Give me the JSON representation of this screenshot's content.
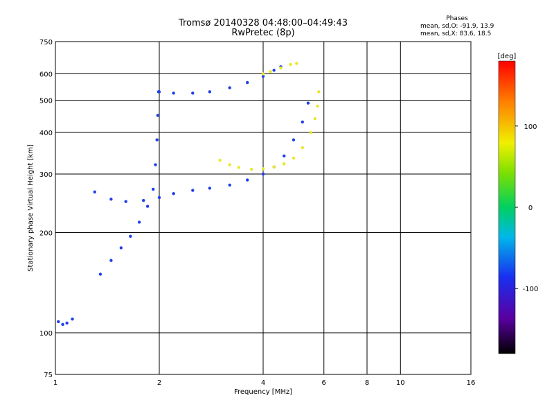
{
  "header": {
    "title_line1": "Tromsø 20140328 04:48:00–04:49:43",
    "title_line2": "RwPretec (8p)",
    "phases_label": "Phases",
    "phases_o": "mean, sd,O: -91.9, 13.9",
    "phases_x": "mean, sd,X:  83.6, 18.5"
  },
  "colorbar": {
    "label": "[deg]",
    "ticks": [
      "100",
      "0",
      "-100"
    ],
    "range": [
      -180,
      180
    ]
  },
  "colors": {
    "o_mode": "#1f3fe8",
    "x_mode": "#e8e82a",
    "grid": "#000000"
  },
  "chart_data": {
    "type": "scatter",
    "title": "Tromsø 20140328 04:48:00–04:49:43",
    "subtitle": "RwPretec (8p)",
    "xlabel": "Frequency [MHz]",
    "ylabel": "Stationary phase Virtual Height [km]",
    "xscale": "log",
    "yscale": "log",
    "xlim": [
      1,
      16
    ],
    "ylim": [
      75,
      750
    ],
    "xticks": [
      "1",
      "2",
      "4",
      "6",
      "8",
      "10",
      "16"
    ],
    "yticks": [
      "75",
      "100",
      "200",
      "300",
      "400",
      "500",
      "600",
      "750"
    ],
    "grid": true,
    "series": [
      {
        "name": "O",
        "color": "#1f3fe8",
        "points": [
          [
            1.02,
            108
          ],
          [
            1.05,
            106
          ],
          [
            1.08,
            107
          ],
          [
            1.12,
            110
          ],
          [
            1.35,
            150
          ],
          [
            1.45,
            165
          ],
          [
            1.55,
            180
          ],
          [
            1.65,
            195
          ],
          [
            1.75,
            215
          ],
          [
            1.85,
            240
          ],
          [
            1.92,
            270
          ],
          [
            1.95,
            320
          ],
          [
            1.97,
            380
          ],
          [
            1.98,
            450
          ],
          [
            1.99,
            530
          ],
          [
            1.3,
            265
          ],
          [
            1.45,
            252
          ],
          [
            1.6,
            248
          ],
          [
            1.8,
            250
          ],
          [
            2.0,
            255
          ],
          [
            2.2,
            262
          ],
          [
            2.5,
            268
          ],
          [
            2.8,
            272
          ],
          [
            3.2,
            278
          ],
          [
            3.6,
            288
          ],
          [
            4.0,
            300
          ],
          [
            4.3,
            315
          ],
          [
            4.6,
            340
          ],
          [
            4.9,
            380
          ],
          [
            5.2,
            430
          ],
          [
            5.4,
            490
          ],
          [
            2.0,
            530
          ],
          [
            2.2,
            525
          ],
          [
            2.5,
            525
          ],
          [
            2.8,
            530
          ],
          [
            3.2,
            545
          ],
          [
            3.6,
            565
          ],
          [
            4.0,
            590
          ],
          [
            4.3,
            615
          ],
          [
            4.5,
            630
          ]
        ]
      },
      {
        "name": "X",
        "color": "#e8e82a",
        "points": [
          [
            3.0,
            330
          ],
          [
            3.2,
            320
          ],
          [
            3.4,
            314
          ],
          [
            3.7,
            310
          ],
          [
            4.0,
            311
          ],
          [
            4.3,
            315
          ],
          [
            4.6,
            322
          ],
          [
            4.9,
            335
          ],
          [
            5.2,
            360
          ],
          [
            5.5,
            400
          ],
          [
            5.65,
            440
          ],
          [
            5.75,
            480
          ],
          [
            5.8,
            530
          ],
          [
            4.0,
            600
          ],
          [
            4.2,
            610
          ],
          [
            4.5,
            625
          ],
          [
            4.8,
            640
          ],
          [
            5.0,
            645
          ]
        ]
      }
    ]
  }
}
